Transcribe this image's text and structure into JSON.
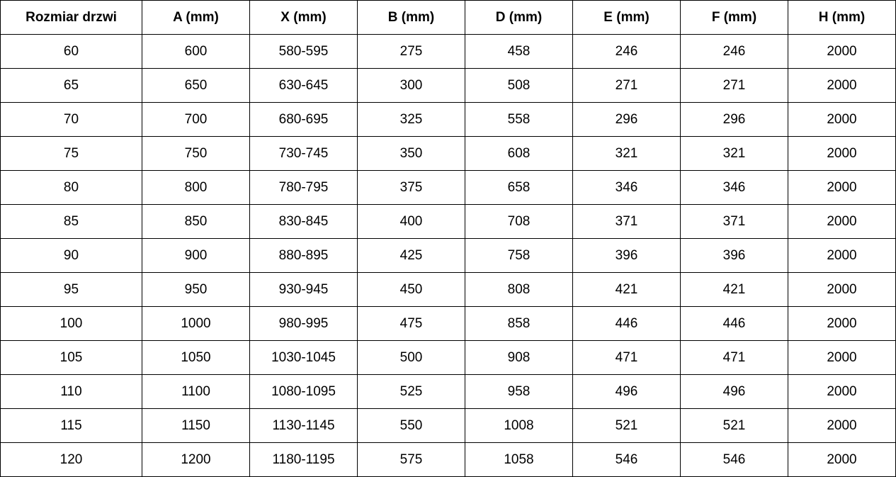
{
  "table": {
    "headers": [
      "Rozmiar drzwi",
      "A (mm)",
      "X (mm)",
      "B (mm)",
      "D (mm)",
      "E (mm)",
      "F (mm)",
      "H (mm)"
    ],
    "rows": [
      [
        "60",
        "600",
        "580-595",
        "275",
        "458",
        "246",
        "246",
        "2000"
      ],
      [
        "65",
        "650",
        "630-645",
        "300",
        "508",
        "271",
        "271",
        "2000"
      ],
      [
        "70",
        "700",
        "680-695",
        "325",
        "558",
        "296",
        "296",
        "2000"
      ],
      [
        "75",
        "750",
        "730-745",
        "350",
        "608",
        "321",
        "321",
        "2000"
      ],
      [
        "80",
        "800",
        "780-795",
        "375",
        "658",
        "346",
        "346",
        "2000"
      ],
      [
        "85",
        "850",
        "830-845",
        "400",
        "708",
        "371",
        "371",
        "2000"
      ],
      [
        "90",
        "900",
        "880-895",
        "425",
        "758",
        "396",
        "396",
        "2000"
      ],
      [
        "95",
        "950",
        "930-945",
        "450",
        "808",
        "421",
        "421",
        "2000"
      ],
      [
        "100",
        "1000",
        "980-995",
        "475",
        "858",
        "446",
        "446",
        "2000"
      ],
      [
        "105",
        "1050",
        "1030-1045",
        "500",
        "908",
        "471",
        "471",
        "2000"
      ],
      [
        "110",
        "1100",
        "1080-1095",
        "525",
        "958",
        "496",
        "496",
        "2000"
      ],
      [
        "115",
        "1150",
        "1130-1145",
        "550",
        "1008",
        "521",
        "521",
        "2000"
      ],
      [
        "120",
        "1200",
        "1180-1195",
        "575",
        "1058",
        "546",
        "546",
        "2000"
      ]
    ]
  }
}
